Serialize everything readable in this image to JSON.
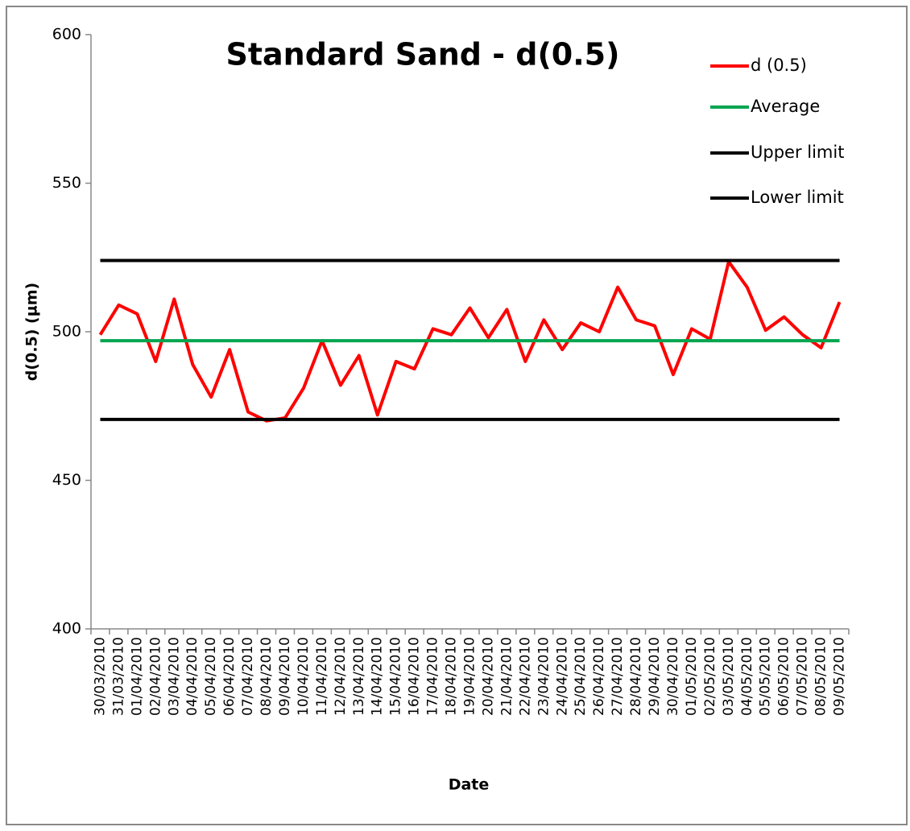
{
  "chart_data": {
    "type": "line",
    "title": "Standard Sand - d(0.5)",
    "x_label": "Date",
    "y_label": "d(0.5) (µm)",
    "categories": [
      "30/03/2010",
      "31/03/2010",
      "01/04/2010",
      "02/04/2010",
      "03/04/2010",
      "04/04/2010",
      "05/04/2010",
      "06/04/2010",
      "07/04/2010",
      "08/04/2010",
      "09/04/2010",
      "10/04/2010",
      "11/04/2010",
      "12/04/2010",
      "13/04/2010",
      "14/04/2010",
      "15/04/2010",
      "16/04/2010",
      "17/04/2010",
      "18/04/2010",
      "19/04/2010",
      "20/04/2010",
      "21/04/2010",
      "22/04/2010",
      "23/04/2010",
      "24/04/2010",
      "25/04/2010",
      "26/04/2010",
      "27/04/2010",
      "28/04/2010",
      "29/04/2010",
      "30/04/2010",
      "01/05/2010",
      "02/05/2010",
      "03/05/2010",
      "04/05/2010",
      "05/05/2010",
      "06/05/2010",
      "07/05/2010",
      "08/05/2010",
      "09/05/2010"
    ],
    "series": [
      {
        "name": "d (0.5)",
        "color": "#ff0000",
        "values": [
          499,
          509,
          506,
          490,
          511,
          489,
          478,
          494,
          473,
          470,
          471,
          481,
          497,
          482,
          492,
          472,
          490,
          487.5,
          501,
          499,
          508,
          498,
          507.5,
          490,
          504,
          494,
          503,
          500,
          515,
          504,
          502,
          485.6,
          501,
          497.5,
          523.6,
          515,
          500.5,
          505,
          499,
          494.6,
          510
        ]
      },
      {
        "name": "Average",
        "color": "#00a550",
        "values": [
          497,
          497,
          497,
          497,
          497,
          497,
          497,
          497,
          497,
          497,
          497,
          497,
          497,
          497,
          497,
          497,
          497,
          497,
          497,
          497,
          497,
          497,
          497,
          497,
          497,
          497,
          497,
          497,
          497,
          497,
          497,
          497,
          497,
          497,
          497,
          497,
          497,
          497,
          497,
          497,
          497
        ]
      },
      {
        "name": "Upper limit",
        "color": "#000000",
        "values": [
          524,
          524,
          524,
          524,
          524,
          524,
          524,
          524,
          524,
          524,
          524,
          524,
          524,
          524,
          524,
          524,
          524,
          524,
          524,
          524,
          524,
          524,
          524,
          524,
          524,
          524,
          524,
          524,
          524,
          524,
          524,
          524,
          524,
          524,
          524,
          524,
          524,
          524,
          524,
          524,
          524
        ]
      },
      {
        "name": "Lower limit",
        "color": "#000000",
        "values": [
          470.5,
          470.5,
          470.5,
          470.5,
          470.5,
          470.5,
          470.5,
          470.5,
          470.5,
          470.5,
          470.5,
          470.5,
          470.5,
          470.5,
          470.5,
          470.5,
          470.5,
          470.5,
          470.5,
          470.5,
          470.5,
          470.5,
          470.5,
          470.5,
          470.5,
          470.5,
          470.5,
          470.5,
          470.5,
          470.5,
          470.5,
          470.5,
          470.5,
          470.5,
          470.5,
          470.5,
          470.5,
          470.5,
          470.5,
          470.5,
          470.5
        ]
      }
    ],
    "ylim": [
      400,
      600
    ],
    "yticks": [
      400,
      450,
      500,
      550,
      600
    ]
  }
}
